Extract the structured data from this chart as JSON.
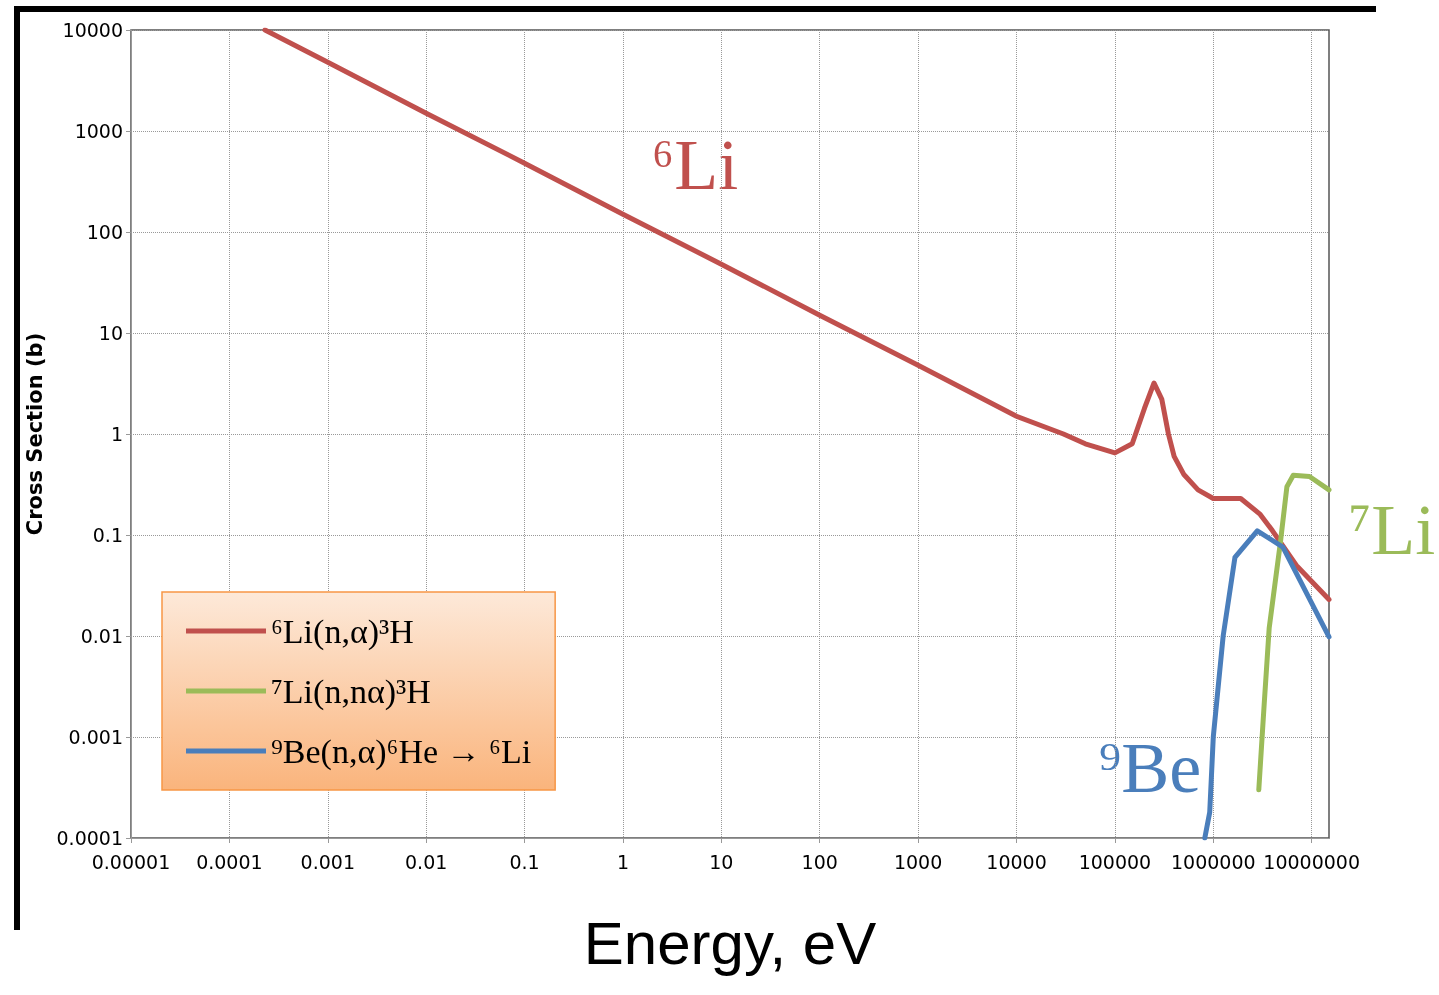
{
  "chart_data": {
    "type": "line",
    "xlabel": "Energy, eV",
    "ylabel": "Cross Section (b)",
    "log": "xy",
    "grid": true,
    "legend": "bottom left",
    "marker": "none",
    "line_style": "solid",
    "xlim": [
      1e-05,
      15000000
    ],
    "xticks": [
      {
        "value": 1e-05,
        "label": "0.00001"
      },
      0.0001,
      0.001,
      0.01,
      0.1,
      1,
      10,
      100,
      1000,
      10000,
      100000,
      1000000,
      10000000
    ],
    "ylim": [
      0.0001,
      10000
    ],
    "yticks": [
      0.0001,
      0.001,
      0.01,
      0.1,
      1,
      10,
      100,
      1000,
      10000
    ],
    "annotations": [
      "⁶Li",
      "⁷Li",
      "⁹Be"
    ],
    "series": [
      {
        "name": "⁶Li(n,α)³H",
        "color": "#c0504d",
        "x": [
          0.00023,
          0.001,
          0.01,
          0.1,
          1,
          10,
          100,
          1000,
          10000,
          30000,
          50000,
          100000,
          150000,
          200000,
          250000,
          300000,
          350000,
          400000,
          500000,
          700000,
          1000000,
          1900000,
          3000000,
          4000000,
          7000000,
          15000000
        ],
        "values": [
          10000,
          4800,
          1500,
          480,
          150,
          48,
          15,
          4.8,
          1.5,
          1.0,
          0.8,
          0.65,
          0.8,
          1.8,
          3.2,
          2.2,
          1.0,
          0.6,
          0.4,
          0.28,
          0.23,
          0.23,
          0.16,
          0.11,
          0.05,
          0.023
        ]
      },
      {
        "name": "⁷Li(n,nα)³H",
        "color": "#9bbb59",
        "x": [
          2900000,
          3300000,
          3700000,
          4800000,
          5600000,
          6500000,
          9500000,
          15000000
        ],
        "values": [
          0.0003,
          0.0022,
          0.012,
          0.083,
          0.3,
          0.39,
          0.38,
          0.28
        ]
      },
      {
        "name": "⁹Be(n,α)⁶He → ⁶Li",
        "color": "#4a7ebb",
        "x": [
          820000,
          920000,
          1000000,
          1260000,
          1660000,
          2800000,
          5100000,
          15000000
        ],
        "values": [
          0.0001,
          0.00018,
          0.001,
          0.01,
          0.06,
          0.11,
          0.076,
          0.0098
        ]
      }
    ]
  }
}
